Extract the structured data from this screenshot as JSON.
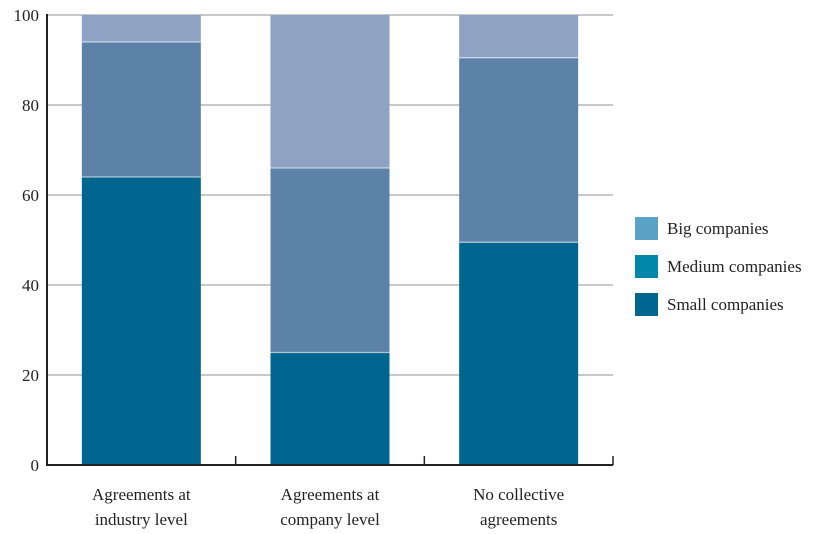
{
  "chart_data": {
    "type": "bar",
    "stacked": true,
    "categories": [
      [
        "Agreements at",
        "industry level"
      ],
      [
        "Agreements at",
        "company level"
      ],
      [
        "No collective",
        "agreements"
      ]
    ],
    "series": [
      {
        "name": "Small companies",
        "values": [
          64,
          25,
          49.5
        ],
        "color": "#006690"
      },
      {
        "name": "Medium companies",
        "values": [
          30,
          41,
          41
        ],
        "color": "#5d82a8"
      },
      {
        "name": "Big companies",
        "values": [
          6,
          34,
          9.5
        ],
        "color": "#8ea3c3"
      }
    ],
    "legend": [
      {
        "label": "Big companies",
        "color": "#5ba3c6"
      },
      {
        "label": "Medium companies",
        "color": "#0087aa"
      },
      {
        "label": "Small companies",
        "color": "#006690"
      }
    ],
    "ylim": [
      0,
      100
    ],
    "yticks": [
      "0",
      "20",
      "40",
      "60",
      "80",
      "100"
    ],
    "grid": true,
    "legend_position": "right"
  }
}
